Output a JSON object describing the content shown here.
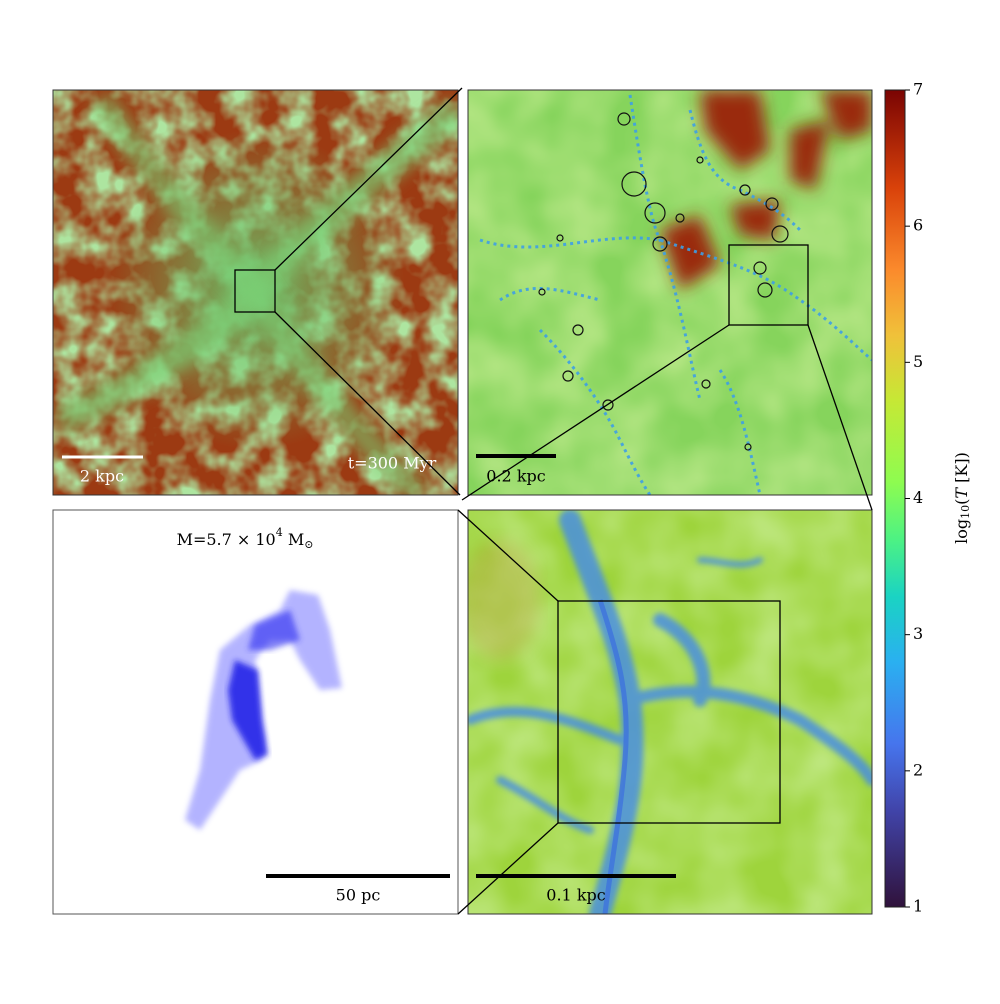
{
  "panels": {
    "overview": {
      "scale_bar": "2 kpc",
      "time": "t=300 Myr"
    },
    "zoom1": {
      "scale_bar": "0.2 kpc"
    },
    "zoom2": {
      "scale_bar": "0.1 kpc"
    },
    "cloud": {
      "scale_bar": "50 pc",
      "mass_label": {
        "text": "M=5.7 × 10",
        "exponent": "4",
        "unit": " M",
        "unit_sub": "⊙"
      }
    }
  },
  "colorbar": {
    "label": {
      "func": "log",
      "sub": "10",
      "open": "(",
      "var": "T",
      "rest": " [K])"
    },
    "lim": [
      1,
      7
    ],
    "ticks": [
      1,
      2,
      3,
      4,
      5,
      6,
      7
    ]
  }
}
